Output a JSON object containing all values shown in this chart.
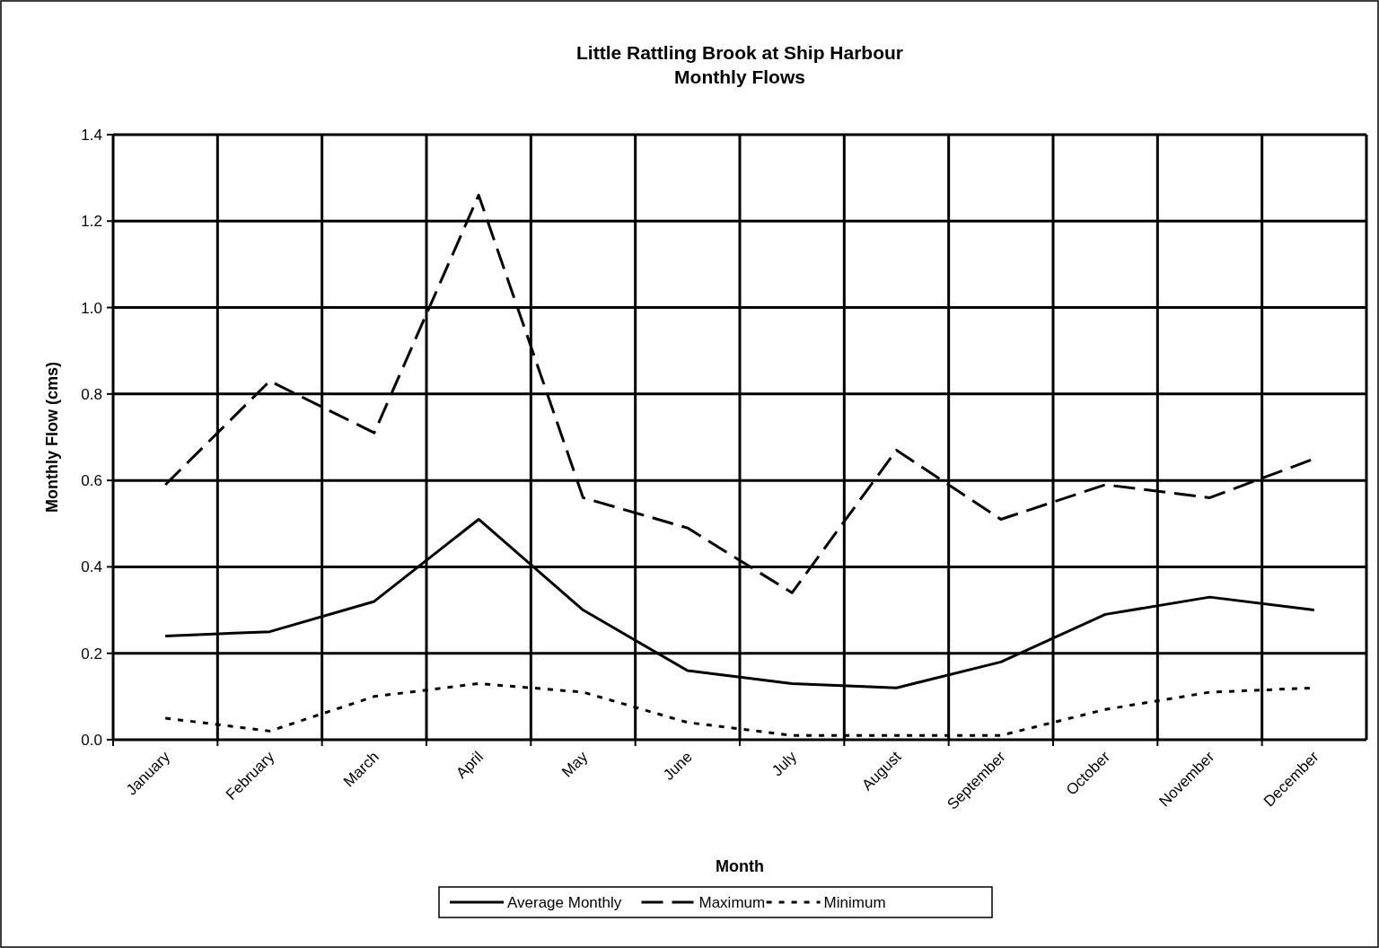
{
  "chart_data": {
    "type": "line",
    "title": "Little Rattling Brook at Ship Harbour\nMonthly Flows",
    "xlabel": "Month",
    "ylabel": "Monthly Flow (cms)",
    "categories": [
      "January",
      "February",
      "March",
      "April",
      "May",
      "June",
      "July",
      "August",
      "September",
      "October",
      "November",
      "December"
    ],
    "series": [
      {
        "name": "Average Monthly",
        "color": "#000000",
        "line_style": "solid",
        "values": [
          0.24,
          0.25,
          0.32,
          0.51,
          0.3,
          0.16,
          0.13,
          0.12,
          0.18,
          0.29,
          0.33,
          0.3
        ]
      },
      {
        "name": "Maximum",
        "color": "#000000",
        "line_style": "dashed",
        "values": [
          0.59,
          0.83,
          0.71,
          1.26,
          0.56,
          0.49,
          0.34,
          0.67,
          0.51,
          0.59,
          0.56,
          0.65
        ]
      },
      {
        "name": "Minimum",
        "color": "#000000",
        "line_style": "dotted",
        "values": [
          0.05,
          0.02,
          0.1,
          0.13,
          0.11,
          0.04,
          0.01,
          0.01,
          0.01,
          0.07,
          0.11,
          0.12
        ]
      }
    ],
    "ylim": [
      0,
      1.4
    ],
    "yticks": [
      {
        "value": 0,
        "label": "0.0"
      },
      {
        "value": 0.2,
        "label": "0.2"
      },
      {
        "value": 0.4,
        "label": "0.4"
      },
      {
        "value": 0.6,
        "label": "0.6"
      },
      {
        "value": 0.8,
        "label": "0.8"
      },
      {
        "value": 1,
        "label": "1.0"
      },
      {
        "value": 1.2,
        "label": "1.2"
      },
      {
        "value": 1.4,
        "label": "1.4"
      }
    ],
    "grid": true,
    "legend": "bottom",
    "marker": "none"
  }
}
